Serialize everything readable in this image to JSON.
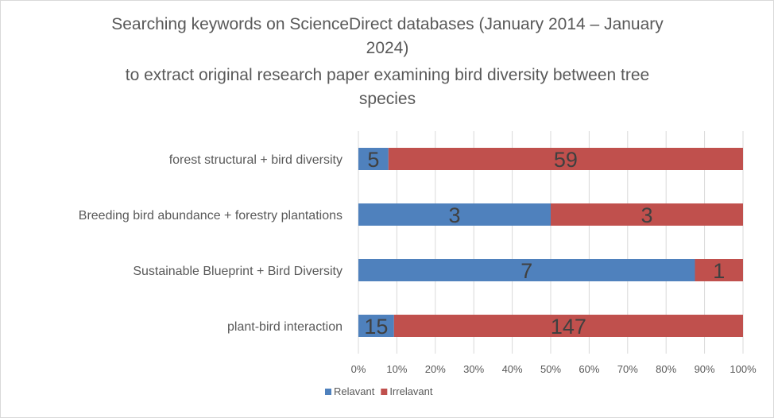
{
  "chart_data": {
    "type": "bar",
    "orientation": "horizontal",
    "stacking": "percent",
    "title_lines": [
      "Searching keywords on ScienceDirect databases (January 2014 – January",
      "2024)",
      "to extract original research paper examining bird diversity between tree",
      "species"
    ],
    "categories": [
      "forest structural  + bird diversity",
      "Breeding bird abundance + forestry plantations",
      "Sustainable Blueprint + Bird Diversity",
      "plant-bird interaction"
    ],
    "series": [
      {
        "name": "Relavant",
        "values": [
          5,
          3,
          7,
          15
        ],
        "color": "#4f81bd"
      },
      {
        "name": "Irrelavant",
        "values": [
          59,
          3,
          1,
          147
        ],
        "color": "#c0504d"
      }
    ],
    "x_ticks": [
      "0%",
      "10%",
      "20%",
      "30%",
      "40%",
      "50%",
      "60%",
      "70%",
      "80%",
      "90%",
      "100%"
    ],
    "xlim": [
      0,
      100
    ],
    "grid": "vertical",
    "legend_position": "bottom"
  }
}
